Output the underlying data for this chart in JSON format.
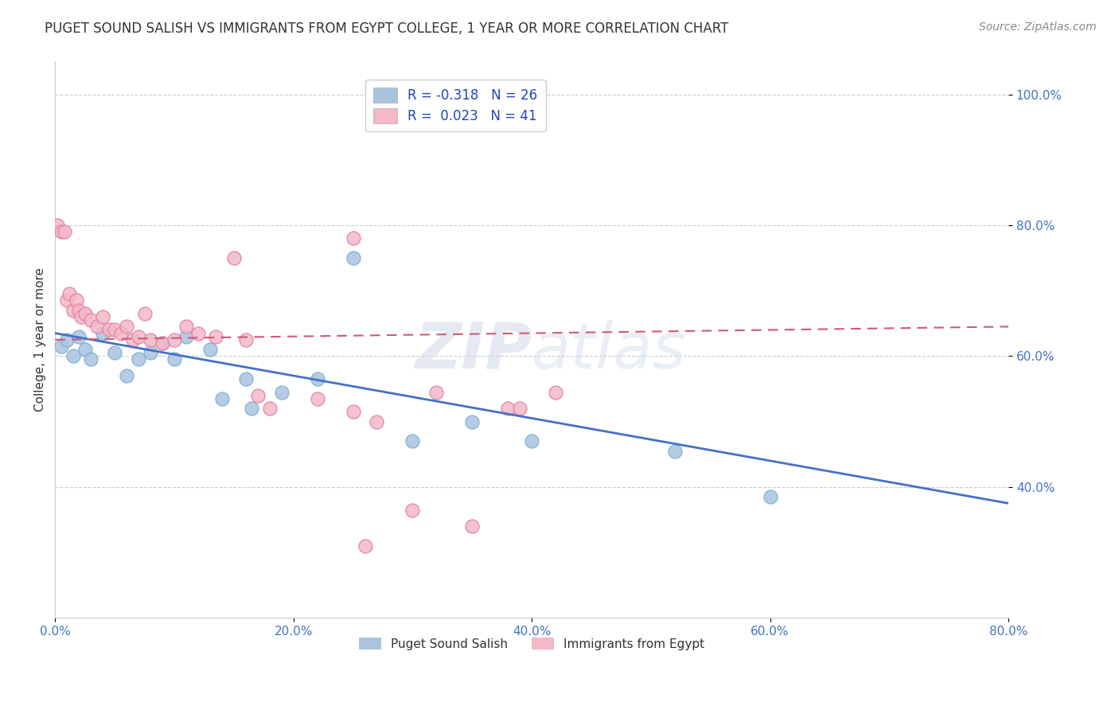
{
  "title": "PUGET SOUND SALISH VS IMMIGRANTS FROM EGYPT COLLEGE, 1 YEAR OR MORE CORRELATION CHART",
  "source": "Source: ZipAtlas.com",
  "ylabel": "College, 1 year or more",
  "xlim": [
    0.0,
    0.8
  ],
  "ylim": [
    0.2,
    1.05
  ],
  "xticks": [
    0.0,
    0.2,
    0.4,
    0.6,
    0.8
  ],
  "xtick_labels": [
    "0.0%",
    "20.0%",
    "40.0%",
    "60.0%",
    "80.0%"
  ],
  "yticks": [
    0.4,
    0.6,
    0.8,
    1.0
  ],
  "ytick_labels": [
    "40.0%",
    "60.0%",
    "80.0%",
    "100.0%"
  ],
  "grid_color": "#cccccc",
  "background_color": "#ffffff",
  "blue_scatter": {
    "x": [
      0.005,
      0.01,
      0.015,
      0.02,
      0.025,
      0.03,
      0.04,
      0.05,
      0.06,
      0.07,
      0.08,
      0.09,
      0.1,
      0.11,
      0.13,
      0.14,
      0.16,
      0.165,
      0.19,
      0.22,
      0.25,
      0.3,
      0.35,
      0.4,
      0.52,
      0.6
    ],
    "y": [
      0.615,
      0.625,
      0.6,
      0.63,
      0.61,
      0.595,
      0.635,
      0.605,
      0.57,
      0.595,
      0.605,
      0.62,
      0.595,
      0.63,
      0.61,
      0.535,
      0.565,
      0.52,
      0.545,
      0.565,
      0.75,
      0.47,
      0.5,
      0.47,
      0.455,
      0.385
    ],
    "color": "#aac4e0",
    "edgecolor": "#7aaed0",
    "label": "Puget Sound Salish",
    "R": -0.318,
    "N": 26
  },
  "pink_scatter": {
    "x": [
      0.002,
      0.005,
      0.008,
      0.01,
      0.012,
      0.015,
      0.018,
      0.02,
      0.022,
      0.025,
      0.03,
      0.035,
      0.04,
      0.045,
      0.05,
      0.055,
      0.06,
      0.065,
      0.07,
      0.075,
      0.08,
      0.09,
      0.1,
      0.11,
      0.12,
      0.135,
      0.15,
      0.16,
      0.17,
      0.18,
      0.22,
      0.25,
      0.25,
      0.27,
      0.3,
      0.32,
      0.35,
      0.38,
      0.39,
      0.42,
      0.26
    ],
    "y": [
      0.8,
      0.79,
      0.79,
      0.685,
      0.695,
      0.67,
      0.685,
      0.67,
      0.66,
      0.665,
      0.655,
      0.645,
      0.66,
      0.64,
      0.64,
      0.635,
      0.645,
      0.625,
      0.63,
      0.665,
      0.625,
      0.62,
      0.625,
      0.645,
      0.635,
      0.63,
      0.75,
      0.625,
      0.54,
      0.52,
      0.535,
      0.515,
      0.78,
      0.5,
      0.365,
      0.545,
      0.34,
      0.52,
      0.52,
      0.545,
      0.31
    ],
    "color": "#f4b8c8",
    "edgecolor": "#e080a0",
    "label": "Immigrants from Egypt",
    "R": 0.023,
    "N": 41
  },
  "blue_line": {
    "x_start": 0.0,
    "y_start": 0.635,
    "x_end": 0.8,
    "y_end": 0.375,
    "color": "#4472c4",
    "linestyle": "solid",
    "linewidth": 2.0
  },
  "pink_line": {
    "x_start": 0.0,
    "y_start": 0.625,
    "x_end": 0.8,
    "y_end": 0.645,
    "color": "#d05878",
    "linestyle": "dashed",
    "linewidth": 1.5
  },
  "legend_R_color": "#2244bb",
  "title_fontsize": 12,
  "axis_label_fontsize": 11,
  "tick_fontsize": 11,
  "source_fontsize": 10,
  "watermark_text": "ZIP atlas",
  "watermark_fontsize": 58
}
